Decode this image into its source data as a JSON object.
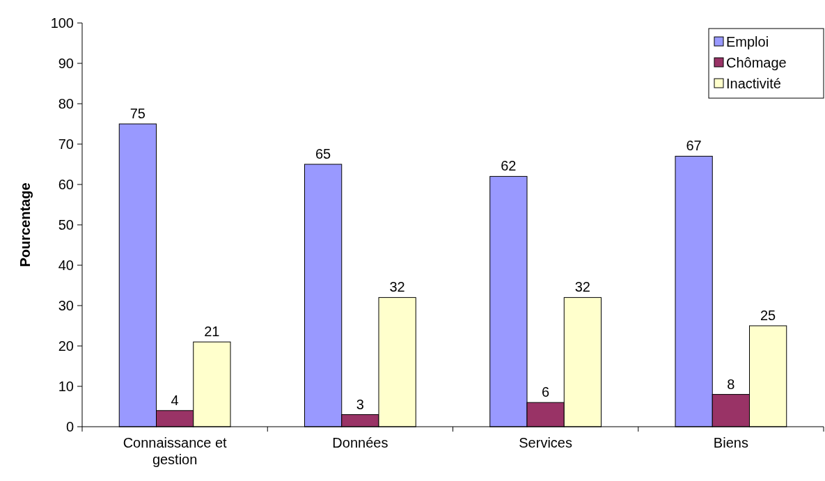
{
  "chart_data": {
    "type": "bar",
    "ylabel": "Pourcentage",
    "categories": [
      "Connaissance et gestion",
      "Données",
      "Services",
      "Biens"
    ],
    "series": [
      {
        "name": "Emploi",
        "color": "#9999ff",
        "values": [
          75,
          65,
          62,
          67
        ]
      },
      {
        "name": "Chômage",
        "color": "#993366",
        "values": [
          4,
          3,
          6,
          8
        ]
      },
      {
        "name": "Inactivité",
        "color": "#ffffcc",
        "values": [
          21,
          32,
          32,
          25
        ]
      }
    ],
    "ylim": [
      0,
      100
    ],
    "yticks": [
      0,
      10,
      20,
      30,
      40,
      50,
      60,
      70,
      80,
      90,
      100
    ],
    "data_labels": true,
    "legend": "top right",
    "grid": false
  }
}
